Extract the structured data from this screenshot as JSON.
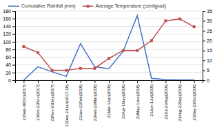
{
  "chart_data": {
    "type": "line",
    "categories": [
      "23Sep-30Oct(2017)",
      "23Oct-23Nov(2017)",
      "23Nov-23Dec(2017)",
      "23Dec-23Jan(2017-18)",
      "23Jan-23Feb(2018)",
      "23Feb-23Mar(2018)",
      "23Mar-1Apr(2018)",
      "23Apr-1May(2018)",
      "23May-1Jun(2018)",
      "23Jun-1Jul(2018)",
      "23Jul-23Aug(2018)",
      "23Aug-23Sep(2018)",
      "23Sep-23Oct(2018)"
    ],
    "series": [
      {
        "name": "Cumulative Rainfall (mm)",
        "color": "#4472C4",
        "values": [
          0,
          35,
          22,
          10,
          95,
          35,
          30,
          75,
          168,
          5,
          2,
          1,
          1
        ]
      },
      {
        "name": "Average Temperature (centigrad)",
        "color": "#C0504D",
        "values": [
          17,
          14,
          5,
          5,
          6,
          6,
          11,
          15,
          15,
          20,
          30,
          31,
          27
        ],
        "axis": "y2",
        "marker": "square"
      }
    ],
    "ylim": [
      0,
      180
    ],
    "yticks": [
      0,
      20,
      40,
      60,
      80,
      100,
      120,
      140,
      160,
      180
    ],
    "y2lim": [
      0,
      35
    ],
    "y2ticks": [
      0,
      5,
      10,
      15,
      20,
      25,
      30,
      35
    ],
    "grid": true,
    "legend": "upper left"
  }
}
